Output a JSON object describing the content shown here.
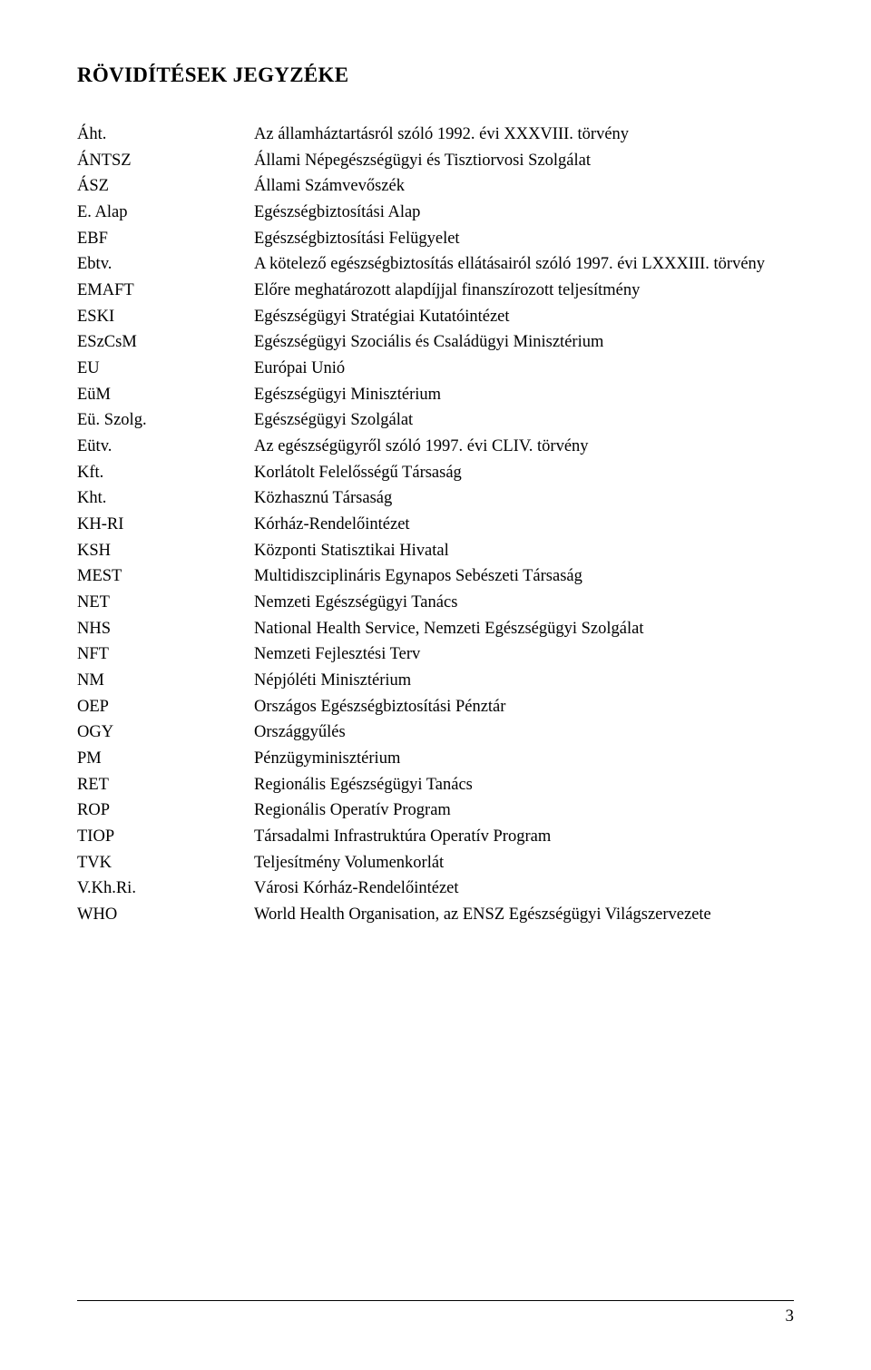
{
  "title": "RÖVIDÍTÉSEK JEGYZÉKE",
  "text_color": "#000000",
  "background_color": "#ffffff",
  "title_fontsize": 23,
  "body_fontsize": 18.5,
  "page_number": "3",
  "footer_line_color": "#000000",
  "entries": [
    {
      "abbr": "Áht.",
      "def": "Az államháztartásról szóló 1992. évi XXXVIII. törvény"
    },
    {
      "abbr": "ÁNTSZ",
      "def": "Állami Népegészségügyi és Tisztiorvosi Szolgálat"
    },
    {
      "abbr": "ÁSZ",
      "def": "Állami Számvevőszék"
    },
    {
      "abbr": "E. Alap",
      "def": "Egészségbiztosítási Alap"
    },
    {
      "abbr": "EBF",
      "def": "Egészségbiztosítási Felügyelet"
    },
    {
      "abbr": "Ebtv.",
      "def": "A kötelező egészségbiztosítás ellátásairól szóló 1997. évi LXXXIII. törvény"
    },
    {
      "abbr": "EMAFT",
      "def": "Előre meghatározott alapdíjjal finanszírozott teljesítmény"
    },
    {
      "abbr": "ESKI",
      "def": "Egészségügyi Stratégiai Kutatóintézet"
    },
    {
      "abbr": "ESzCsM",
      "def": "Egészségügyi Szociális és Családügyi Minisztérium"
    },
    {
      "abbr": "EU",
      "def": "Európai Unió"
    },
    {
      "abbr": "EüM",
      "def": "Egészségügyi Minisztérium"
    },
    {
      "abbr": "Eü. Szolg.",
      "def": "Egészségügyi Szolgálat"
    },
    {
      "abbr": "Eütv.",
      "def": "Az egészségügyről szóló 1997. évi CLIV. törvény"
    },
    {
      "abbr": "Kft.",
      "def": "Korlátolt Felelősségű Társaság"
    },
    {
      "abbr": "Kht.",
      "def": "Közhasznú Társaság"
    },
    {
      "abbr": "KH-RI",
      "def": "Kórház-Rendelőintézet"
    },
    {
      "abbr": "KSH",
      "def": "Központi Statisztikai Hivatal"
    },
    {
      "abbr": "MEST",
      "def": "Multidiszciplináris Egynapos Sebészeti Társaság"
    },
    {
      "abbr": "NET",
      "def": "Nemzeti Egészségügyi Tanács"
    },
    {
      "abbr": "NHS",
      "def": "National Health Service, Nemzeti Egészségügyi Szolgálat"
    },
    {
      "abbr": "NFT",
      "def": "Nemzeti Fejlesztési Terv"
    },
    {
      "abbr": "NM",
      "def": "Népjóléti Minisztérium"
    },
    {
      "abbr": "OEP",
      "def": "Országos Egészségbiztosítási Pénztár"
    },
    {
      "abbr": "OGY",
      "def": "Országgyűlés"
    },
    {
      "abbr": "PM",
      "def": "Pénzügyminisztérium"
    },
    {
      "abbr": "RET",
      "def": "Regionális Egészségügyi Tanács"
    },
    {
      "abbr": "ROP",
      "def": "Regionális Operatív Program"
    },
    {
      "abbr": "TIOP",
      "def": "Társadalmi Infrastruktúra Operatív Program"
    },
    {
      "abbr": "TVK",
      "def": "Teljesítmény Volumenkorlát"
    },
    {
      "abbr": "V.Kh.Ri.",
      "def": "Városi Kórház-Rendelőintézet"
    },
    {
      "abbr": "WHO",
      "def": "World Health Organisation, az ENSZ Egészségügyi Világszervezete"
    }
  ]
}
